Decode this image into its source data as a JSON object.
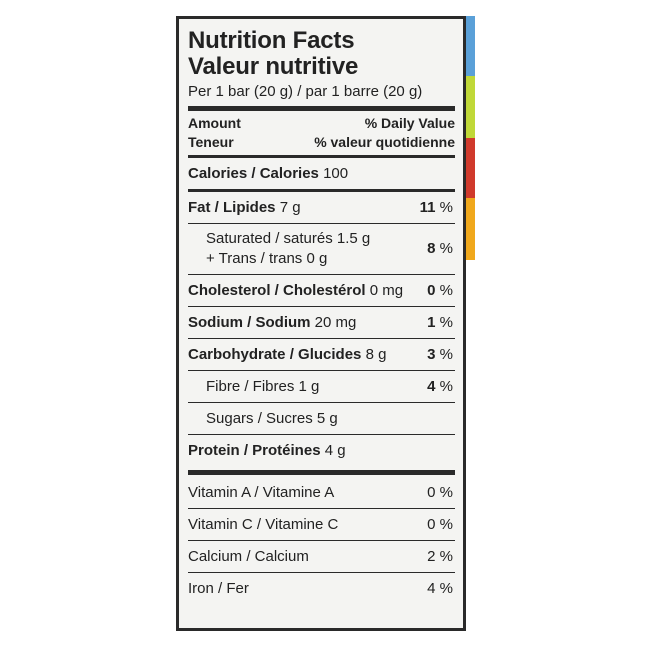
{
  "colors": {
    "stripes": [
      "#5aa0d8",
      "#c0d838",
      "#d03a2c",
      "#f0a81c"
    ],
    "panel_bg": "#f4f4f2",
    "rules": "#2a2a2a"
  },
  "label": {
    "title_en": "Nutrition Facts",
    "title_fr": "Valeur nutritive",
    "serving": "Per 1 bar (20 g) / par 1 barre (20 g)",
    "header": {
      "amount": "Amount",
      "teneur": "Teneur",
      "dv_en": "% Daily Value",
      "dv_fr": "% valeur quotidienne"
    },
    "calories": {
      "label": "Calories / Calories",
      "value": "100"
    },
    "fat": {
      "label": "Fat / Lipides",
      "amount": "7 g",
      "dv": "11",
      "pct": "%"
    },
    "saturated": {
      "line1": "Saturated / saturés 1.5 g",
      "line2": "+ Trans / trans 0 g",
      "dv": "8",
      "pct": "%"
    },
    "cholesterol": {
      "label": "Cholesterol / Cholestérol",
      "amount": "0 mg",
      "dv": "0",
      "pct": "%"
    },
    "sodium": {
      "label": "Sodium / Sodium",
      "amount": "20 mg",
      "dv": "1",
      "pct": "%"
    },
    "carbohydrate": {
      "label": "Carbohydrate / Glucides",
      "amount": "8 g",
      "dv": "3",
      "pct": "%"
    },
    "fibre": {
      "label": "Fibre / Fibres 1 g",
      "dv": "4",
      "pct": "%"
    },
    "sugars": {
      "label": "Sugars / Sucres 5 g"
    },
    "protein": {
      "label": "Protein / Protéines",
      "amount": "4 g"
    },
    "vitamins": [
      {
        "label": "Vitamin A / Vitamine A",
        "dv": "0 %"
      },
      {
        "label": "Vitamin C / Vitamine C",
        "dv": "0 %"
      },
      {
        "label": "Calcium / Calcium",
        "dv": "2 %"
      },
      {
        "label": "Iron / Fer",
        "dv": "4 %"
      }
    ]
  }
}
